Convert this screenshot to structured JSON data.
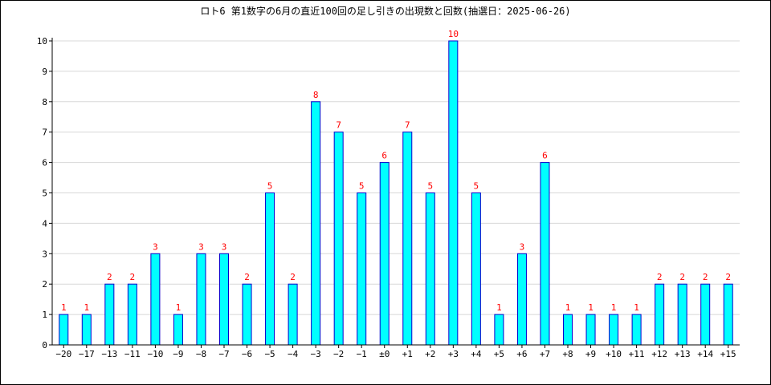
{
  "chart_data": {
    "type": "bar",
    "title": "ロト6 第1数字の6月の直近100回の足し引きの出現数と回数(抽選日：2025-06-26)",
    "xlabel": "",
    "ylabel": "",
    "categories": [
      "−20",
      "−17",
      "−13",
      "−11",
      "−10",
      "−9",
      "−8",
      "−7",
      "−6",
      "−5",
      "−4",
      "−3",
      "−2",
      "−1",
      "±0",
      "+1",
      "+2",
      "+3",
      "+4",
      "+5",
      "+6",
      "+7",
      "+8",
      "+9",
      "+10",
      "+11",
      "+12",
      "+13",
      "+14",
      "+15"
    ],
    "values": [
      1,
      1,
      2,
      2,
      3,
      1,
      3,
      3,
      2,
      5,
      2,
      8,
      7,
      5,
      6,
      7,
      5,
      10,
      5,
      1,
      3,
      6,
      1,
      1,
      1,
      1,
      2,
      2,
      2,
      2
    ],
    "ylim": [
      0,
      10
    ],
    "yticks": [
      "0",
      "1",
      "2",
      "3",
      "4",
      "5",
      "6",
      "7",
      "8",
      "9",
      "10"
    ],
    "grid": true,
    "legend": "none",
    "colors": {
      "bar_fill": "#00ffff",
      "bar_stroke": "#0000cc",
      "data_label": "#ff0000",
      "grid": "#d8d8d8",
      "axis": "#000000"
    }
  }
}
